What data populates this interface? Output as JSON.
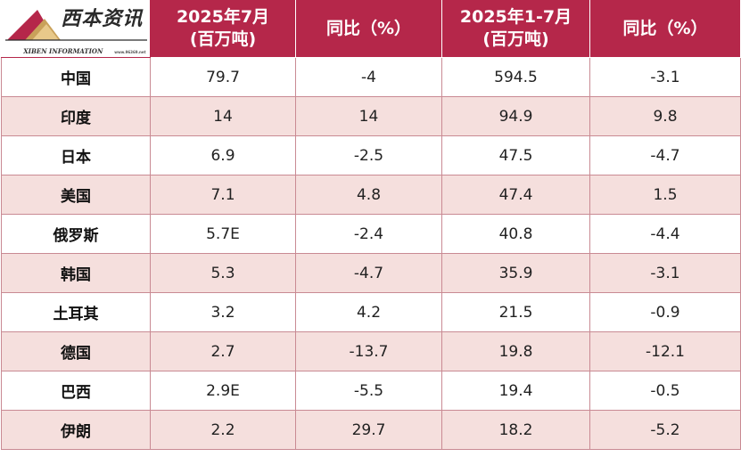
{
  "logo": {
    "cn": "西本资讯",
    "en": "XIBEN INFORMATION",
    "url": "www.96369.net"
  },
  "header": {
    "col1": [
      "2025年7月",
      "(百万吨)"
    ],
    "col2": "同比（%）",
    "col3": [
      "2025年1-7月",
      "(百万吨)"
    ],
    "col4": "同比（%）"
  },
  "colors": {
    "header_bg": "#b5274a",
    "stripe_bg": "#f5dfdd",
    "border": "#c98a93"
  },
  "rows": [
    {
      "country": "中国",
      "jul": "79.7",
      "jul_yoy": "-4",
      "ytd": "594.5",
      "ytd_yoy": "-3.1"
    },
    {
      "country": "印度",
      "jul": "14",
      "jul_yoy": "14",
      "ytd": "94.9",
      "ytd_yoy": "9.8"
    },
    {
      "country": "日本",
      "jul": "6.9",
      "jul_yoy": "-2.5",
      "ytd": "47.5",
      "ytd_yoy": "-4.7"
    },
    {
      "country": "美国",
      "jul": "7.1",
      "jul_yoy": "4.8",
      "ytd": "47.4",
      "ytd_yoy": "1.5"
    },
    {
      "country": "俄罗斯",
      "jul": "5.7E",
      "jul_yoy": "-2.4",
      "ytd": "40.8",
      "ytd_yoy": "-4.4"
    },
    {
      "country": "韩国",
      "jul": "5.3",
      "jul_yoy": "-4.7",
      "ytd": "35.9",
      "ytd_yoy": "-3.1"
    },
    {
      "country": "土耳其",
      "jul": "3.2",
      "jul_yoy": "4.2",
      "ytd": "21.5",
      "ytd_yoy": "-0.9"
    },
    {
      "country": "德国",
      "jul": "2.7",
      "jul_yoy": "-13.7",
      "ytd": "19.8",
      "ytd_yoy": "-12.1"
    },
    {
      "country": "巴西",
      "jul": "2.9E",
      "jul_yoy": "-5.5",
      "ytd": "19.4",
      "ytd_yoy": "-0.5"
    },
    {
      "country": "伊朗",
      "jul": "2.2",
      "jul_yoy": "29.7",
      "ytd": "18.2",
      "ytd_yoy": "-5.2"
    }
  ]
}
